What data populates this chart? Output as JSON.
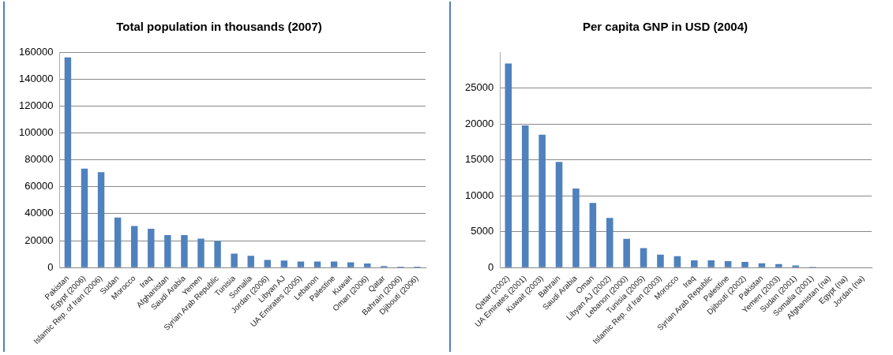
{
  "chart_data": [
    {
      "type": "bar",
      "title": "Total population in thousands (2007)",
      "categories": [
        "Pakistan",
        "Egypt (2006)",
        "Islamic Rep. of Iran (2006)",
        "Sudan",
        "Morocco",
        "Iraq",
        "Afghanistan",
        "Saudi Arabia",
        "Yemen",
        "Syrian Arab Republic",
        "Tunisia",
        "Somalia",
        "Jordan (2006)",
        "Libyan AJ",
        "UA Emirates (2005)",
        "Lebanon",
        "Palestine",
        "Kuwait",
        "Oman (2006)",
        "Qatar",
        "Bahrain (2006)",
        "Djibouti (2006)"
      ],
      "values": [
        156000,
        73500,
        70800,
        37200,
        30800,
        28800,
        24200,
        24200,
        21500,
        19800,
        10300,
        8700,
        5700,
        5300,
        4500,
        4500,
        4500,
        3900,
        3100,
        1200,
        700,
        700
      ],
      "color": "#4f81bd",
      "ylim": [
        0,
        160000
      ],
      "yticks": [
        0,
        20000,
        40000,
        60000,
        80000,
        100000,
        120000,
        140000,
        160000
      ],
      "grid": "y",
      "legend": false
    },
    {
      "type": "bar",
      "title": "Per capita GNP in USD (2004)",
      "categories": [
        "Qatar (2002)",
        "UA Emirates (2001)",
        "Kuwait (2003)",
        "Bahrain",
        "Saudi Arabia",
        "Oman",
        "Libyan AJ (2002)",
        "Lebanon (2000)",
        "Tunisia (2005)",
        "Islamic Rep. of Iran (2003)",
        "Morocco",
        "Iraq",
        "Syrian Arab Republic",
        "Palestine",
        "Djibouti (2002)",
        "Pakistan",
        "Yemen (2003)",
        "Sudan (2001)",
        "Somalia (2001)",
        "Afghanistan (na)",
        "Egypt (na)",
        "Jordan (na)"
      ],
      "values": [
        28400,
        19800,
        18500,
        14700,
        11000,
        9000,
        6900,
        4000,
        2700,
        1800,
        1600,
        1000,
        1000,
        900,
        800,
        600,
        500,
        300,
        100,
        null,
        null,
        null
      ],
      "color": "#4f81bd",
      "ylim": [
        0,
        30000
      ],
      "yticks": [
        0,
        5000,
        10000,
        15000,
        20000,
        25000
      ],
      "grid": "y",
      "legend": false
    }
  ]
}
